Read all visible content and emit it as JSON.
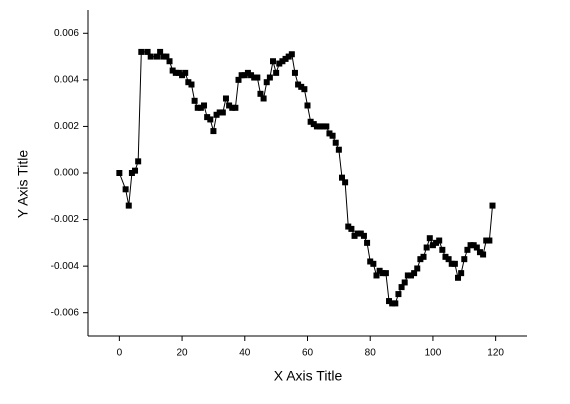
{
  "chart_data": {
    "type": "line",
    "x_label": "X Axis Title",
    "y_label": "Y Axis Title",
    "x": [
      0,
      2,
      3,
      4,
      5,
      6,
      7,
      9,
      10,
      12,
      13,
      14,
      15,
      16,
      17,
      18,
      19,
      20,
      21,
      22,
      23,
      24,
      25,
      26,
      27,
      28,
      29,
      30,
      31,
      32,
      33,
      34,
      35,
      36,
      37,
      38,
      39,
      40,
      41,
      42,
      43,
      44,
      45,
      46,
      47,
      48,
      49,
      50,
      51,
      52,
      53,
      54,
      55,
      56,
      57,
      58,
      59,
      60,
      61,
      62,
      63,
      64,
      65,
      66,
      67,
      68,
      69,
      70,
      71,
      72,
      73,
      74,
      75,
      76,
      77,
      78,
      79,
      80,
      81,
      82,
      83,
      84,
      85,
      86,
      87,
      88,
      89,
      90,
      91,
      92,
      93,
      94,
      95,
      96,
      97,
      98,
      99,
      100,
      101,
      102,
      103,
      104,
      105,
      106,
      107,
      108,
      109,
      110,
      111,
      112,
      113,
      114,
      115,
      116,
      117,
      118,
      119
    ],
    "series": [
      {
        "color": "#000000",
        "values": [
          0.0,
          -0.0007,
          -0.0014,
          0.0,
          0.0001,
          0.0005,
          0.0052,
          0.0052,
          0.005,
          0.005,
          0.0052,
          0.005,
          0.005,
          0.0048,
          0.0044,
          0.0043,
          0.0043,
          0.0042,
          0.0043,
          0.0039,
          0.0038,
          0.0031,
          0.0028,
          0.0028,
          0.0029,
          0.0024,
          0.0023,
          0.0018,
          0.0025,
          0.0026,
          0.0026,
          0.0032,
          0.0029,
          0.0028,
          0.0028,
          0.004,
          0.0042,
          0.0042,
          0.0043,
          0.0042,
          0.0041,
          0.0041,
          0.0034,
          0.0032,
          0.0039,
          0.0041,
          0.0048,
          0.0043,
          0.0047,
          0.0048,
          0.0049,
          0.005,
          0.0051,
          0.0043,
          0.0038,
          0.0037,
          0.0036,
          0.0029,
          0.0022,
          0.0021,
          0.002,
          0.002,
          0.002,
          0.002,
          0.0017,
          0.0016,
          0.0013,
          0.001,
          -0.0002,
          -0.0004,
          -0.0023,
          -0.0024,
          -0.0027,
          -0.0026,
          -0.0026,
          -0.0027,
          -0.003,
          -0.0038,
          -0.0039,
          -0.0044,
          -0.0042,
          -0.0043,
          -0.0043,
          -0.0055,
          -0.0056,
          -0.0056,
          -0.0052,
          -0.0049,
          -0.0047,
          -0.0044,
          -0.0044,
          -0.0043,
          -0.0041,
          -0.0037,
          -0.0036,
          -0.0032,
          -0.0028,
          -0.0031,
          -0.003,
          -0.0029,
          -0.0033,
          -0.0036,
          -0.0037,
          -0.0039,
          -0.0039,
          -0.0045,
          -0.0043,
          -0.0037,
          -0.0033,
          -0.0031,
          -0.0031,
          -0.0032,
          -0.0034,
          -0.0035,
          -0.0029,
          -0.0029,
          -0.0014
        ]
      }
    ],
    "xlim": [
      -10,
      130
    ],
    "xticks": [
      0,
      20,
      40,
      60,
      80,
      100,
      120
    ],
    "ylim": [
      -0.007,
      0.007
    ],
    "yticks": [
      -0.006,
      -0.004,
      -0.002,
      {
        "value": 0,
        "label": "0.000"
      },
      0.002,
      0.004,
      0.006
    ]
  }
}
